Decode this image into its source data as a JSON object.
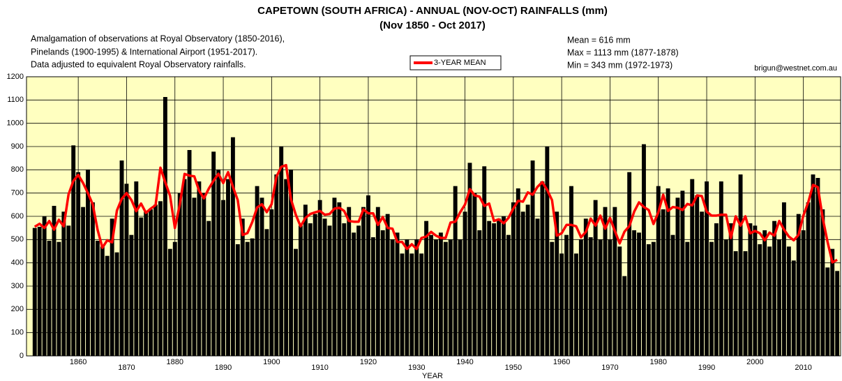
{
  "chart_data": {
    "type": "bar",
    "title": "CAPETOWN (SOUTH AFRICA) - ANNUAL (NOV-OCT) RAINFALLS (mm)",
    "subtitle": "(Nov 1850 - Oct 2017)",
    "notes": [
      "Amalgamation of observations at Royal Observatory (1850-2016),",
      "Pinelands (1900-1995) & International Airport (1951-2017).",
      "Data adjusted to equivalent Royal Observatory rainfalls."
    ],
    "stats": [
      "Mean = 616 mm",
      "Max   = 1113 mm (1877-1878)",
      "Min    = 343 mm (1972-1973)"
    ],
    "credit": "brigun@westnet.com.au",
    "x_label": "YEAR",
    "color": "#000000",
    "grid": true,
    "xlim": [
      1849.3,
      2017.7
    ],
    "xticks": [
      1860,
      1870,
      1880,
      1890,
      1900,
      1910,
      1920,
      1930,
      1940,
      1950,
      1960,
      1970,
      1980,
      1990,
      2000,
      2010
    ],
    "ylim": [
      0,
      1200
    ],
    "yticks": [
      0,
      100,
      200,
      300,
      400,
      500,
      600,
      700,
      800,
      900,
      1000,
      1100,
      1200
    ],
    "x": [
      1851,
      1852,
      1853,
      1854,
      1855,
      1856,
      1857,
      1858,
      1859,
      1860,
      1861,
      1862,
      1863,
      1864,
      1865,
      1866,
      1867,
      1868,
      1869,
      1870,
      1871,
      1872,
      1873,
      1874,
      1875,
      1876,
      1877,
      1878,
      1879,
      1880,
      1881,
      1882,
      1883,
      1884,
      1885,
      1886,
      1887,
      1888,
      1889,
      1890,
      1891,
      1892,
      1893,
      1894,
      1895,
      1896,
      1897,
      1898,
      1899,
      1900,
      1901,
      1902,
      1903,
      1904,
      1905,
      1906,
      1907,
      1908,
      1909,
      1910,
      1911,
      1912,
      1913,
      1914,
      1915,
      1916,
      1917,
      1918,
      1919,
      1920,
      1921,
      1922,
      1923,
      1924,
      1925,
      1926,
      1927,
      1928,
      1929,
      1930,
      1931,
      1932,
      1933,
      1934,
      1935,
      1936,
      1937,
      1938,
      1939,
      1940,
      1941,
      1942,
      1943,
      1944,
      1945,
      1946,
      1947,
      1948,
      1949,
      1950,
      1951,
      1952,
      1953,
      1954,
      1955,
      1956,
      1957,
      1958,
      1959,
      1960,
      1961,
      1962,
      1963,
      1964,
      1965,
      1966,
      1967,
      1968,
      1969,
      1970,
      1971,
      1972,
      1973,
      1974,
      1975,
      1976,
      1977,
      1978,
      1979,
      1980,
      1981,
      1982,
      1983,
      1984,
      1985,
      1986,
      1987,
      1988,
      1989,
      1990,
      1991,
      1992,
      1993,
      1994,
      1995,
      1996,
      1997,
      1998,
      1999,
      2000,
      2001,
      2002,
      2003,
      2004,
      2005,
      2006,
      2007,
      2008,
      2009,
      2010,
      2011,
      2012,
      2013,
      2014,
      2015,
      2016,
      2017
    ],
    "values": [
      550,
      555,
      600,
      495,
      645,
      490,
      620,
      560,
      905,
      790,
      640,
      800,
      660,
      495,
      470,
      430,
      590,
      445,
      840,
      740,
      520,
      750,
      595,
      620,
      630,
      650,
      665,
      1113,
      460,
      490,
      700,
      760,
      885,
      680,
      750,
      700,
      580,
      878,
      800,
      670,
      760,
      940,
      480,
      590,
      490,
      505,
      730,
      680,
      545,
      630,
      780,
      900,
      760,
      800,
      460,
      560,
      650,
      570,
      610,
      670,
      590,
      560,
      680,
      660,
      570,
      640,
      530,
      560,
      640,
      690,
      510,
      640,
      540,
      610,
      500,
      530,
      440,
      500,
      440,
      500,
      440,
      580,
      520,
      500,
      530,
      490,
      500,
      730,
      500,
      620,
      830,
      700,
      540,
      815,
      580,
      570,
      590,
      600,
      520,
      660,
      720,
      620,
      650,
      840,
      590,
      750,
      900,
      490,
      620,
      440,
      520,
      730,
      440,
      500,
      590,
      510,
      670,
      500,
      640,
      500,
      640,
      470,
      343,
      790,
      540,
      530,
      910,
      480,
      490,
      730,
      630,
      720,
      520,
      680,
      710,
      490,
      760,
      690,
      620,
      750,
      490,
      570,
      750,
      500,
      570,
      450,
      780,
      450,
      570,
      560,
      480,
      540,
      470,
      580,
      500,
      660,
      470,
      410,
      610,
      540,
      660,
      780,
      765,
      630,
      380,
      460,
      365
    ],
    "series": [
      {
        "name": "3-YEAR MEAN",
        "color": "#ff0000",
        "values": [
          555,
          568,
          550,
          580,
          543,
          585,
          557,
          695,
          752,
          778,
          743,
          700,
          652,
          542,
          465,
          497,
          488,
          625,
          675,
          700,
          670,
          622,
          655,
          615,
          633,
          648,
          809,
          746,
          688,
          550,
          650,
          782,
          775,
          772,
          710,
          677,
          719,
          753,
          783,
          743,
          790,
          727,
          670,
          520,
          528,
          575,
          638,
          652,
          618,
          652,
          770,
          813,
          820,
          673,
          607,
          557,
          593,
          610,
          617,
          623,
          607,
          610,
          633,
          637,
          623,
          580,
          577,
          577,
          630,
          613,
          613,
          563,
          597,
          550,
          547,
          490,
          490,
          460,
          480,
          460,
          507,
          513,
          533,
          517,
          507,
          507,
          573,
          577,
          617,
          650,
          717,
          690,
          685,
          645,
          655,
          580,
          587,
          570,
          593,
          633,
          667,
          663,
          703,
          693,
          727,
          747,
          713,
          670,
          517,
          527,
          563,
          563,
          557,
          510,
          533,
          590,
          560,
          603,
          547,
          593,
          537,
          484,
          534,
          558,
          620,
          660,
          640,
          627,
          567,
          617,
          693,
          623,
          640,
          637,
          627,
          653,
          647,
          690,
          687,
          620,
          603,
          603,
          607,
          607,
          507,
          600,
          560,
          600,
          527,
          537,
          527,
          497,
          530,
          517,
          580,
          543,
          513,
          497,
          520,
          603,
          660,
          735,
          725,
          592,
          490,
          402,
          413
        ]
      }
    ]
  }
}
